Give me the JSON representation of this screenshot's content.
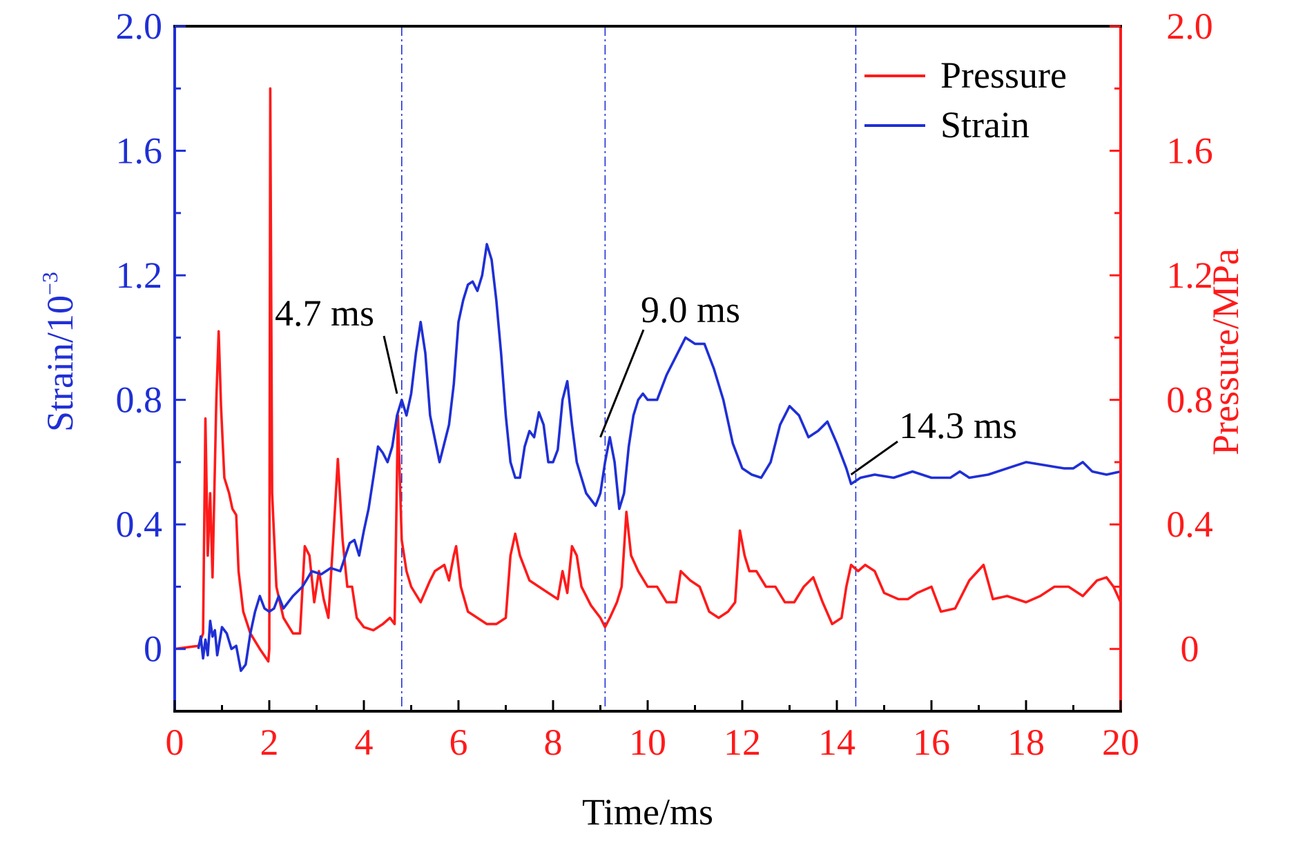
{
  "chart_data": {
    "type": "line",
    "title": "",
    "xlabel": "Time/ms",
    "ylabel_left": "Strain/10",
    "ylabel_left_sup": "−3",
    "ylabel_right": "Pressure/MPa",
    "xlim": [
      0,
      20
    ],
    "ylim_left": [
      -0.2,
      2.0
    ],
    "ylim_right": [
      -0.2,
      2.0
    ],
    "x_ticks": [
      "0",
      "2",
      "4",
      "6",
      "8",
      "10",
      "12",
      "14",
      "16",
      "18",
      "20"
    ],
    "y_ticks_left": [
      "0",
      "0.4",
      "0.8",
      "1.2",
      "1.6",
      "2.0"
    ],
    "y_ticks_right": [
      "0",
      "0.4",
      "0.8",
      "1.2",
      "1.6",
      "2.0"
    ],
    "grid": false,
    "legend_position": "top-right",
    "colors": {
      "strain": "#1f2fd6",
      "pressure": "#ff1a1a",
      "axis_left": "#1f2fd6",
      "axis_right": "#ff1a1a",
      "axis_bottom": "#000000"
    },
    "series": [
      {
        "name": "Pressure",
        "axis": "right",
        "color": "#ff1a1a",
        "points": [
          [
            0,
            0
          ],
          [
            0.5,
            0.01
          ],
          [
            0.6,
            0.05
          ],
          [
            0.65,
            0.74
          ],
          [
            0.7,
            0.3
          ],
          [
            0.75,
            0.5
          ],
          [
            0.8,
            0.23
          ],
          [
            0.88,
            0.8
          ],
          [
            0.93,
            1.02
          ],
          [
            0.98,
            0.78
          ],
          [
            1.05,
            0.55
          ],
          [
            1.15,
            0.5
          ],
          [
            1.22,
            0.45
          ],
          [
            1.3,
            0.43
          ],
          [
            1.35,
            0.25
          ],
          [
            1.45,
            0.12
          ],
          [
            1.6,
            0.05
          ],
          [
            1.8,
            0.0
          ],
          [
            1.98,
            -0.04
          ],
          [
            2.0,
            0.0
          ],
          [
            2.02,
            1.8
          ],
          [
            2.06,
            0.5
          ],
          [
            2.15,
            0.2
          ],
          [
            2.3,
            0.1
          ],
          [
            2.5,
            0.05
          ],
          [
            2.65,
            0.05
          ],
          [
            2.75,
            0.33
          ],
          [
            2.85,
            0.3
          ],
          [
            2.95,
            0.15
          ],
          [
            3.05,
            0.25
          ],
          [
            3.15,
            0.16
          ],
          [
            3.25,
            0.1
          ],
          [
            3.35,
            0.35
          ],
          [
            3.45,
            0.61
          ],
          [
            3.55,
            0.35
          ],
          [
            3.65,
            0.2
          ],
          [
            3.75,
            0.2
          ],
          [
            3.85,
            0.1
          ],
          [
            4.0,
            0.07
          ],
          [
            4.2,
            0.06
          ],
          [
            4.4,
            0.08
          ],
          [
            4.55,
            0.1
          ],
          [
            4.65,
            0.08
          ],
          [
            4.72,
            0.75
          ],
          [
            4.8,
            0.35
          ],
          [
            4.9,
            0.25
          ],
          [
            5.0,
            0.2
          ],
          [
            5.2,
            0.15
          ],
          [
            5.4,
            0.22
          ],
          [
            5.5,
            0.25
          ],
          [
            5.7,
            0.27
          ],
          [
            5.8,
            0.22
          ],
          [
            5.9,
            0.3
          ],
          [
            5.95,
            0.33
          ],
          [
            6.05,
            0.2
          ],
          [
            6.2,
            0.12
          ],
          [
            6.4,
            0.1
          ],
          [
            6.6,
            0.08
          ],
          [
            6.8,
            0.08
          ],
          [
            7.0,
            0.1
          ],
          [
            7.1,
            0.3
          ],
          [
            7.2,
            0.37
          ],
          [
            7.3,
            0.3
          ],
          [
            7.5,
            0.22
          ],
          [
            7.7,
            0.2
          ],
          [
            7.9,
            0.18
          ],
          [
            8.1,
            0.16
          ],
          [
            8.2,
            0.25
          ],
          [
            8.3,
            0.18
          ],
          [
            8.4,
            0.33
          ],
          [
            8.5,
            0.3
          ],
          [
            8.6,
            0.2
          ],
          [
            8.8,
            0.14
          ],
          [
            9.0,
            0.1
          ],
          [
            9.1,
            0.07
          ],
          [
            9.2,
            0.1
          ],
          [
            9.35,
            0.15
          ],
          [
            9.45,
            0.2
          ],
          [
            9.55,
            0.44
          ],
          [
            9.65,
            0.3
          ],
          [
            9.8,
            0.25
          ],
          [
            10.0,
            0.2
          ],
          [
            10.2,
            0.2
          ],
          [
            10.4,
            0.15
          ],
          [
            10.6,
            0.15
          ],
          [
            10.7,
            0.25
          ],
          [
            10.9,
            0.22
          ],
          [
            11.1,
            0.2
          ],
          [
            11.3,
            0.12
          ],
          [
            11.5,
            0.1
          ],
          [
            11.7,
            0.12
          ],
          [
            11.85,
            0.15
          ],
          [
            11.95,
            0.38
          ],
          [
            12.05,
            0.3
          ],
          [
            12.15,
            0.25
          ],
          [
            12.3,
            0.25
          ],
          [
            12.5,
            0.2
          ],
          [
            12.7,
            0.2
          ],
          [
            12.9,
            0.15
          ],
          [
            13.1,
            0.15
          ],
          [
            13.3,
            0.2
          ],
          [
            13.5,
            0.23
          ],
          [
            13.7,
            0.15
          ],
          [
            13.9,
            0.08
          ],
          [
            14.1,
            0.1
          ],
          [
            14.2,
            0.2
          ],
          [
            14.3,
            0.27
          ],
          [
            14.45,
            0.25
          ],
          [
            14.6,
            0.27
          ],
          [
            14.8,
            0.25
          ],
          [
            15.0,
            0.18
          ],
          [
            15.3,
            0.16
          ],
          [
            15.5,
            0.16
          ],
          [
            15.7,
            0.18
          ],
          [
            16.0,
            0.2
          ],
          [
            16.2,
            0.12
          ],
          [
            16.5,
            0.13
          ],
          [
            16.8,
            0.22
          ],
          [
            17.1,
            0.27
          ],
          [
            17.3,
            0.16
          ],
          [
            17.6,
            0.17
          ],
          [
            18.0,
            0.15
          ],
          [
            18.3,
            0.17
          ],
          [
            18.6,
            0.2
          ],
          [
            18.9,
            0.2
          ],
          [
            19.2,
            0.17
          ],
          [
            19.5,
            0.22
          ],
          [
            19.7,
            0.23
          ],
          [
            19.85,
            0.2
          ],
          [
            20.0,
            0.15
          ]
        ]
      },
      {
        "name": "Strain",
        "axis": "left",
        "color": "#1f2fd6",
        "points": [
          [
            0.5,
            0.0
          ],
          [
            0.55,
            0.04
          ],
          [
            0.6,
            -0.03
          ],
          [
            0.65,
            0.03
          ],
          [
            0.7,
            -0.02
          ],
          [
            0.75,
            0.09
          ],
          [
            0.8,
            0.04
          ],
          [
            0.85,
            0.06
          ],
          [
            0.9,
            -0.02
          ],
          [
            1.0,
            0.07
          ],
          [
            1.1,
            0.05
          ],
          [
            1.2,
            0.0
          ],
          [
            1.3,
            0.01
          ],
          [
            1.4,
            -0.07
          ],
          [
            1.5,
            -0.05
          ],
          [
            1.6,
            0.05
          ],
          [
            1.7,
            0.12
          ],
          [
            1.8,
            0.17
          ],
          [
            1.9,
            0.13
          ],
          [
            2.0,
            0.12
          ],
          [
            2.1,
            0.13
          ],
          [
            2.2,
            0.17
          ],
          [
            2.3,
            0.13
          ],
          [
            2.5,
            0.17
          ],
          [
            2.7,
            0.2
          ],
          [
            2.9,
            0.25
          ],
          [
            3.1,
            0.24
          ],
          [
            3.3,
            0.26
          ],
          [
            3.5,
            0.25
          ],
          [
            3.7,
            0.34
          ],
          [
            3.8,
            0.35
          ],
          [
            3.9,
            0.3
          ],
          [
            4.0,
            0.38
          ],
          [
            4.1,
            0.45
          ],
          [
            4.2,
            0.55
          ],
          [
            4.3,
            0.65
          ],
          [
            4.4,
            0.63
          ],
          [
            4.5,
            0.6
          ],
          [
            4.6,
            0.65
          ],
          [
            4.7,
            0.75
          ],
          [
            4.8,
            0.8
          ],
          [
            4.9,
            0.75
          ],
          [
            5.0,
            0.82
          ],
          [
            5.1,
            0.95
          ],
          [
            5.2,
            1.05
          ],
          [
            5.3,
            0.95
          ],
          [
            5.4,
            0.75
          ],
          [
            5.6,
            0.6
          ],
          [
            5.8,
            0.72
          ],
          [
            5.9,
            0.85
          ],
          [
            6.0,
            1.05
          ],
          [
            6.1,
            1.12
          ],
          [
            6.2,
            1.17
          ],
          [
            6.3,
            1.18
          ],
          [
            6.4,
            1.15
          ],
          [
            6.5,
            1.2
          ],
          [
            6.6,
            1.3
          ],
          [
            6.7,
            1.25
          ],
          [
            6.8,
            1.12
          ],
          [
            6.9,
            0.95
          ],
          [
            7.0,
            0.75
          ],
          [
            7.1,
            0.6
          ],
          [
            7.2,
            0.55
          ],
          [
            7.3,
            0.55
          ],
          [
            7.4,
            0.65
          ],
          [
            7.5,
            0.7
          ],
          [
            7.6,
            0.68
          ],
          [
            7.7,
            0.76
          ],
          [
            7.8,
            0.72
          ],
          [
            7.9,
            0.6
          ],
          [
            8.0,
            0.6
          ],
          [
            8.1,
            0.64
          ],
          [
            8.2,
            0.8
          ],
          [
            8.3,
            0.86
          ],
          [
            8.4,
            0.72
          ],
          [
            8.5,
            0.6
          ],
          [
            8.6,
            0.55
          ],
          [
            8.7,
            0.5
          ],
          [
            8.8,
            0.48
          ],
          [
            8.9,
            0.46
          ],
          [
            9.0,
            0.5
          ],
          [
            9.1,
            0.6
          ],
          [
            9.2,
            0.68
          ],
          [
            9.3,
            0.6
          ],
          [
            9.4,
            0.45
          ],
          [
            9.5,
            0.5
          ],
          [
            9.6,
            0.65
          ],
          [
            9.7,
            0.75
          ],
          [
            9.8,
            0.8
          ],
          [
            9.9,
            0.82
          ],
          [
            10.0,
            0.8
          ],
          [
            10.2,
            0.8
          ],
          [
            10.4,
            0.88
          ],
          [
            10.6,
            0.94
          ],
          [
            10.8,
            1.0
          ],
          [
            11.0,
            0.98
          ],
          [
            11.2,
            0.98
          ],
          [
            11.4,
            0.9
          ],
          [
            11.6,
            0.8
          ],
          [
            11.8,
            0.66
          ],
          [
            12.0,
            0.58
          ],
          [
            12.2,
            0.56
          ],
          [
            12.4,
            0.55
          ],
          [
            12.6,
            0.6
          ],
          [
            12.8,
            0.72
          ],
          [
            13.0,
            0.78
          ],
          [
            13.2,
            0.75
          ],
          [
            13.4,
            0.68
          ],
          [
            13.6,
            0.7
          ],
          [
            13.8,
            0.73
          ],
          [
            14.0,
            0.66
          ],
          [
            14.2,
            0.58
          ],
          [
            14.3,
            0.53
          ],
          [
            14.5,
            0.55
          ],
          [
            14.8,
            0.56
          ],
          [
            15.2,
            0.55
          ],
          [
            15.6,
            0.57
          ],
          [
            16.0,
            0.55
          ],
          [
            16.4,
            0.55
          ],
          [
            16.6,
            0.57
          ],
          [
            16.8,
            0.55
          ],
          [
            17.2,
            0.56
          ],
          [
            17.6,
            0.58
          ],
          [
            18.0,
            0.6
          ],
          [
            18.4,
            0.59
          ],
          [
            18.8,
            0.58
          ],
          [
            19.0,
            0.58
          ],
          [
            19.2,
            0.6
          ],
          [
            19.4,
            0.57
          ],
          [
            19.7,
            0.56
          ],
          [
            20.0,
            0.57
          ]
        ]
      }
    ],
    "markers": [
      4.8,
      9.1,
      14.4
    ],
    "annotations": [
      {
        "text": "4.7 ms",
        "x": 4.7,
        "y": 0.82
      },
      {
        "text": "9.0 ms",
        "x": 9.0,
        "y": 0.68
      },
      {
        "text": "14.3 ms",
        "x": 14.3,
        "y": 0.56
      }
    ]
  }
}
